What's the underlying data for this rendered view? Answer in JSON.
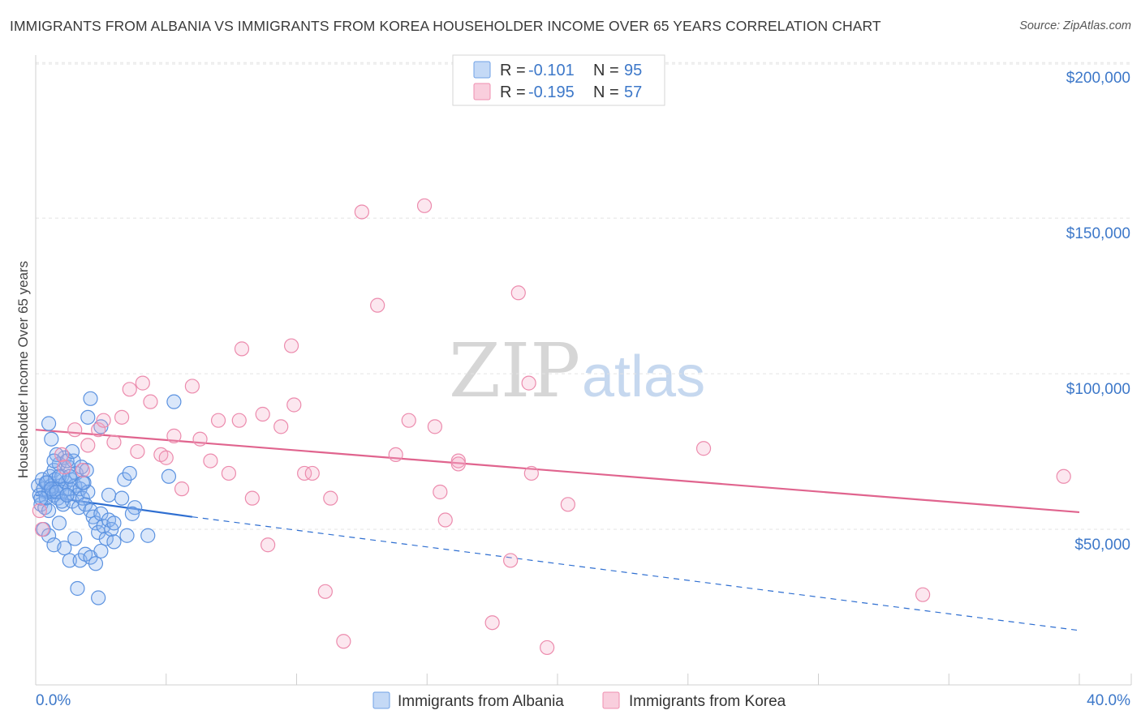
{
  "title": "IMMIGRANTS FROM ALBANIA VS IMMIGRANTS FROM KOREA HOUSEHOLDER INCOME OVER 65 YEARS CORRELATION CHART",
  "source": "Source: ZipAtlas.com",
  "watermark": {
    "zip": "ZIP",
    "atlas": "atlas"
  },
  "colors": {
    "albania": "#6fa1e6",
    "albania_line": "#2f6fd1",
    "korea": "#ef8fb0",
    "korea_line": "#e0648e",
    "tick_text": "#3d78c9"
  },
  "chart_data": {
    "type": "scatter",
    "xlabel": "",
    "ylabel": "Householder Income Over 65 years",
    "xlim": [
      0,
      40
    ],
    "ylim": [
      0,
      205000
    ],
    "x_tick_labels": [
      {
        "value": 0,
        "label": "0.0%"
      },
      {
        "value": 40,
        "label": "40.0%"
      }
    ],
    "y_ticks": [
      {
        "value": 50000,
        "label": "$50,000"
      },
      {
        "value": 100000,
        "label": "$100,000"
      },
      {
        "value": 150000,
        "label": "$150,000"
      },
      {
        "value": 200000,
        "label": "$200,000"
      }
    ],
    "legend": [
      {
        "series": "Immigrants from Albania",
        "r_label": "R =",
        "r": "-0.101",
        "n_label": "N =",
        "n": "95"
      },
      {
        "series": "Immigrants from Korea",
        "r_label": "R =",
        "r": "-0.195",
        "n_label": "N =",
        "n": "57"
      }
    ],
    "series": [
      {
        "name": "Immigrants from Albania",
        "trend": {
          "x0": 0,
          "y0": 61000,
          "x1": 6,
          "y1": 54000,
          "extend_to_x": 40,
          "extend_y": 17500
        },
        "points": [
          [
            0.1,
            64000
          ],
          [
            0.15,
            61000
          ],
          [
            0.2,
            58000
          ],
          [
            0.25,
            66000
          ],
          [
            0.3,
            63000
          ],
          [
            0.35,
            57000
          ],
          [
            0.4,
            60000
          ],
          [
            0.45,
            65000
          ],
          [
            0.5,
            62000
          ],
          [
            0.5,
            56000
          ],
          [
            0.55,
            67000
          ],
          [
            0.6,
            64000
          ],
          [
            0.65,
            62000
          ],
          [
            0.7,
            69000
          ],
          [
            0.7,
            61000
          ],
          [
            0.75,
            66000
          ],
          [
            0.8,
            63000
          ],
          [
            0.85,
            60000
          ],
          [
            0.9,
            71000
          ],
          [
            0.95,
            64000
          ],
          [
            1.0,
            67000
          ],
          [
            1.0,
            62000
          ],
          [
            1.05,
            58000
          ],
          [
            1.1,
            73000
          ],
          [
            1.15,
            65000
          ],
          [
            1.2,
            61000
          ],
          [
            1.25,
            70000
          ],
          [
            1.3,
            63000
          ],
          [
            1.35,
            66000
          ],
          [
            1.4,
            59000
          ],
          [
            1.45,
            72000
          ],
          [
            1.5,
            64000
          ],
          [
            1.55,
            68000
          ],
          [
            1.6,
            61000
          ],
          [
            1.65,
            57000
          ],
          [
            1.7,
            63000
          ],
          [
            1.75,
            70000
          ],
          [
            1.8,
            60000
          ],
          [
            1.85,
            65000
          ],
          [
            1.9,
            58000
          ],
          [
            1.95,
            69000
          ],
          [
            2.0,
            62000
          ],
          [
            2.1,
            56000
          ],
          [
            2.2,
            54000
          ],
          [
            2.3,
            52000
          ],
          [
            2.4,
            49000
          ],
          [
            2.5,
            55000
          ],
          [
            2.6,
            51000
          ],
          [
            2.7,
            47000
          ],
          [
            2.8,
            53000
          ],
          [
            2.9,
            50000
          ],
          [
            3.0,
            46000
          ],
          [
            0.3,
            50000
          ],
          [
            0.5,
            48000
          ],
          [
            0.7,
            45000
          ],
          [
            0.9,
            52000
          ],
          [
            1.1,
            44000
          ],
          [
            1.3,
            40000
          ],
          [
            1.5,
            47000
          ],
          [
            1.7,
            40000
          ],
          [
            1.9,
            42000
          ],
          [
            2.1,
            41000
          ],
          [
            2.3,
            39000
          ],
          [
            2.5,
            43000
          ],
          [
            1.6,
            31000
          ],
          [
            2.4,
            28000
          ],
          [
            0.5,
            84000
          ],
          [
            0.6,
            79000
          ],
          [
            2.1,
            92000
          ],
          [
            2.5,
            83000
          ],
          [
            5.3,
            91000
          ],
          [
            2.0,
            86000
          ],
          [
            0.8,
            74000
          ],
          [
            1.2,
            72000
          ],
          [
            1.4,
            75000
          ],
          [
            3.4,
            66000
          ],
          [
            3.3,
            60000
          ],
          [
            3.0,
            52000
          ],
          [
            3.5,
            48000
          ],
          [
            3.8,
            57000
          ],
          [
            4.3,
            48000
          ],
          [
            3.7,
            55000
          ],
          [
            5.1,
            67000
          ],
          [
            1.8,
            65000
          ],
          [
            0.2,
            60000
          ],
          [
            0.4,
            65000
          ],
          [
            0.6,
            63000
          ],
          [
            0.8,
            62000
          ],
          [
            1.0,
            59000
          ],
          [
            1.2,
            61000
          ],
          [
            2.8,
            61000
          ],
          [
            3.6,
            68000
          ],
          [
            0.9,
            67000
          ],
          [
            1.3,
            67000
          ],
          [
            0.7,
            72000
          ]
        ]
      },
      {
        "name": "Immigrants from Korea",
        "trend": {
          "x0": 0,
          "y0": 82000,
          "x1": 40,
          "y1": 55500
        },
        "points": [
          [
            0.15,
            56000
          ],
          [
            0.25,
            50000
          ],
          [
            1.0,
            74000
          ],
          [
            1.1,
            70000
          ],
          [
            1.5,
            82000
          ],
          [
            1.8,
            69000
          ],
          [
            2.0,
            77000
          ],
          [
            2.4,
            82000
          ],
          [
            2.6,
            85000
          ],
          [
            3.0,
            78000
          ],
          [
            3.3,
            86000
          ],
          [
            3.6,
            95000
          ],
          [
            3.9,
            75000
          ],
          [
            4.1,
            97000
          ],
          [
            4.4,
            91000
          ],
          [
            4.8,
            74000
          ],
          [
            5.0,
            73000
          ],
          [
            5.3,
            80000
          ],
          [
            5.6,
            63000
          ],
          [
            6.0,
            96000
          ],
          [
            6.3,
            79000
          ],
          [
            6.7,
            72000
          ],
          [
            7.0,
            85000
          ],
          [
            7.4,
            68000
          ],
          [
            7.8,
            85000
          ],
          [
            7.9,
            108000
          ],
          [
            8.3,
            60000
          ],
          [
            8.7,
            87000
          ],
          [
            8.9,
            45000
          ],
          [
            9.4,
            83000
          ],
          [
            9.8,
            109000
          ],
          [
            9.9,
            90000
          ],
          [
            10.3,
            68000
          ],
          [
            10.6,
            68000
          ],
          [
            11.1,
            30000
          ],
          [
            11.3,
            60000
          ],
          [
            11.8,
            14000
          ],
          [
            12.5,
            152000
          ],
          [
            13.1,
            122000
          ],
          [
            13.8,
            74000
          ],
          [
            14.3,
            85000
          ],
          [
            14.9,
            154000
          ],
          [
            15.3,
            83000
          ],
          [
            15.5,
            62000
          ],
          [
            15.7,
            53000
          ],
          [
            16.2,
            72000
          ],
          [
            16.2,
            71000
          ],
          [
            17.5,
            20000
          ],
          [
            18.2,
            40000
          ],
          [
            18.5,
            126000
          ],
          [
            18.9,
            97000
          ],
          [
            19.0,
            68000
          ],
          [
            19.6,
            12000
          ],
          [
            20.4,
            58000
          ],
          [
            25.6,
            76000
          ],
          [
            34.0,
            29000
          ],
          [
            39.4,
            67000
          ]
        ]
      }
    ]
  }
}
